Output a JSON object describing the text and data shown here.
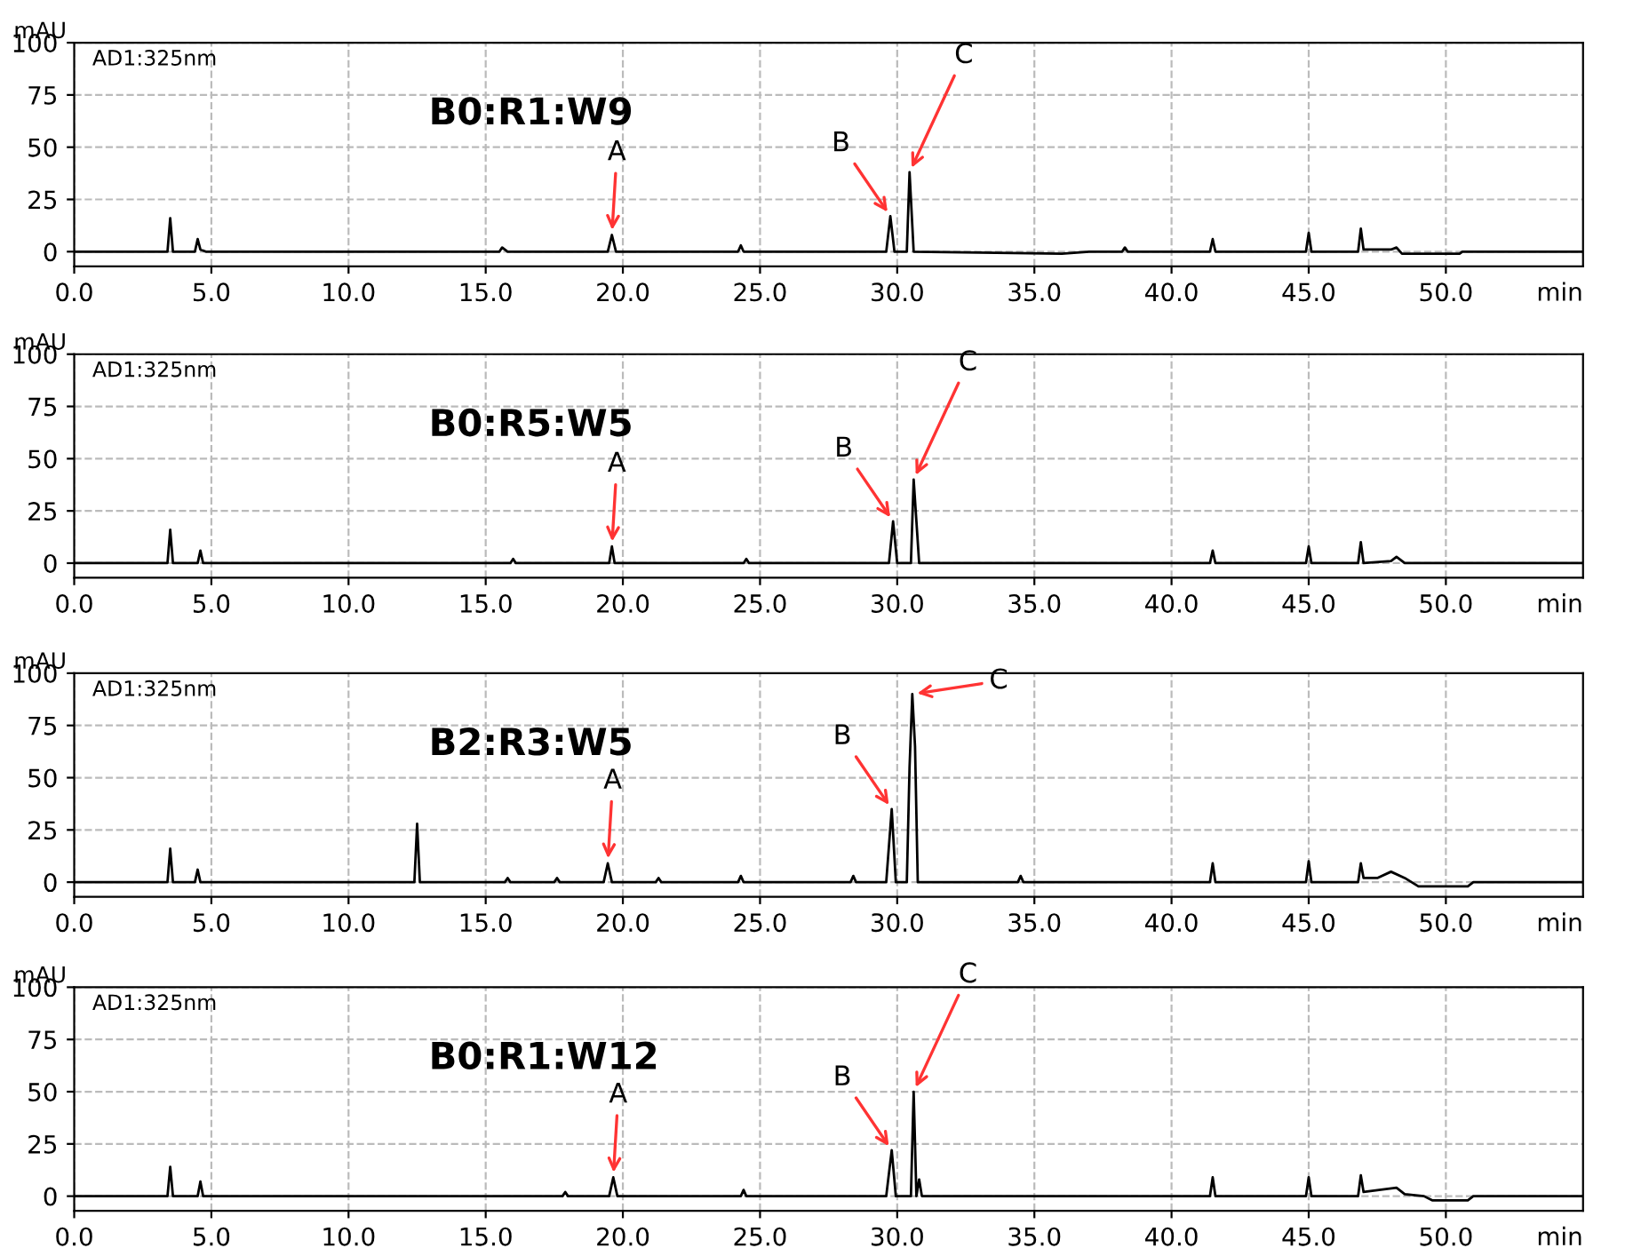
{
  "chart_data": [
    {
      "type": "line",
      "title": "B0:R1:W9",
      "ylabel": "mAU",
      "xlabel": "min",
      "annotations": [
        "AD1:325nm",
        {
          "text": "A",
          "x": 19.6,
          "y": 8
        },
        {
          "text": "B",
          "x": 29.75,
          "y": 17
        },
        {
          "text": "C",
          "x": 30.45,
          "y": 38
        }
      ],
      "series": [
        {
          "color": "#000000",
          "x": [
            0,
            3.4,
            3.5,
            3.6,
            4.4,
            4.5,
            4.6,
            4.8,
            15.5,
            15.6,
            15.8,
            19.45,
            19.6,
            19.75,
            24.2,
            24.3,
            24.4,
            29.6,
            29.75,
            29.9,
            30.35,
            30.45,
            30.6,
            36,
            37,
            38.2,
            38.3,
            38.4,
            41.4,
            41.5,
            41.6,
            44.9,
            45,
            45.1,
            46.8,
            46.9,
            47,
            48,
            48.2,
            48.4,
            50.5,
            50.6,
            55
          ],
          "values": [
            0,
            0,
            16,
            0,
            0,
            6,
            1,
            0,
            0,
            2,
            0,
            0,
            8,
            0,
            0,
            3,
            0,
            0,
            17,
            0,
            0,
            38,
            0,
            -1,
            0,
            0,
            2,
            0,
            0,
            6,
            0,
            0,
            9,
            0,
            0,
            11,
            1,
            1,
            2,
            -1,
            -1,
            0,
            0
          ]
        }
      ],
      "xlim": [
        0,
        55
      ],
      "xticks": [
        {
          "value": 0,
          "label": "0.0"
        },
        {
          "value": 5,
          "label": "5.0"
        },
        {
          "value": 10,
          "label": "10.0"
        },
        {
          "value": 15,
          "label": "15.0"
        },
        {
          "value": 20,
          "label": "20.0"
        },
        {
          "value": 25,
          "label": "25.0"
        },
        {
          "value": 30,
          "label": "30.0"
        },
        {
          "value": 35,
          "label": "35.0"
        },
        {
          "value": 40,
          "label": "40.0"
        },
        {
          "value": 45,
          "label": "45.0"
        },
        {
          "value": 50,
          "label": "50.0"
        }
      ],
      "ylim": [
        -7,
        100
      ],
      "yticks": [
        0,
        25,
        50,
        75,
        100
      ],
      "grid": true,
      "line_style": "solid",
      "marker": "none"
    },
    {
      "type": "line",
      "title": "B0:R5:W5",
      "ylabel": "mAU",
      "xlabel": "min",
      "annotations": [
        "AD1:325nm",
        {
          "text": "A",
          "x": 19.6,
          "y": 8
        },
        {
          "text": "B",
          "x": 29.85,
          "y": 20
        },
        {
          "text": "C",
          "x": 30.6,
          "y": 40
        }
      ],
      "series": [
        {
          "color": "#000000",
          "x": [
            0,
            3.4,
            3.5,
            3.6,
            4.5,
            4.6,
            4.7,
            15.9,
            16,
            16.1,
            19.5,
            19.6,
            19.7,
            24.4,
            24.5,
            24.6,
            29.7,
            29.85,
            30,
            30.5,
            30.6,
            30.7,
            30.8,
            41.4,
            41.5,
            41.6,
            44.9,
            45,
            45.1,
            46.8,
            46.9,
            47,
            48,
            48.2,
            48.5,
            55
          ],
          "values": [
            0,
            0,
            16,
            0,
            0,
            6,
            0,
            0,
            2,
            0,
            0,
            8,
            0,
            0,
            2,
            0,
            0,
            20,
            0,
            0,
            40,
            20,
            0,
            0,
            6,
            0,
            0,
            8,
            0,
            0,
            10,
            0,
            1,
            3,
            0,
            0
          ]
        }
      ],
      "xlim": [
        0,
        55
      ],
      "xticks": [
        {
          "value": 0,
          "label": "0.0"
        },
        {
          "value": 5,
          "label": "5.0"
        },
        {
          "value": 10,
          "label": "10.0"
        },
        {
          "value": 15,
          "label": "15.0"
        },
        {
          "value": 20,
          "label": "20.0"
        },
        {
          "value": 25,
          "label": "25.0"
        },
        {
          "value": 30,
          "label": "30.0"
        },
        {
          "value": 35,
          "label": "35.0"
        },
        {
          "value": 40,
          "label": "40.0"
        },
        {
          "value": 45,
          "label": "45.0"
        },
        {
          "value": 50,
          "label": "50.0"
        }
      ],
      "ylim": [
        -7,
        100
      ],
      "yticks": [
        0,
        25,
        50,
        75,
        100
      ],
      "grid": true,
      "line_style": "solid",
      "marker": "none"
    },
    {
      "type": "line",
      "title": "B2:R3:W5",
      "ylabel": "mAU",
      "xlabel": "min",
      "annotations": [
        "AD1:325nm",
        {
          "text": "A",
          "x": 19.45,
          "y": 9
        },
        {
          "text": "B",
          "x": 29.8,
          "y": 35
        },
        {
          "text": "C",
          "x": 30.55,
          "y": 90
        }
      ],
      "series": [
        {
          "color": "#000000",
          "x": [
            0,
            3.4,
            3.5,
            3.6,
            4.4,
            4.5,
            4.6,
            12.4,
            12.5,
            12.6,
            15.7,
            15.8,
            15.9,
            17.5,
            17.6,
            17.7,
            19.3,
            19.45,
            19.6,
            21.2,
            21.3,
            21.4,
            24.2,
            24.3,
            24.4,
            28.3,
            28.4,
            28.5,
            29.6,
            29.8,
            29.95,
            30.35,
            30.45,
            30.55,
            30.65,
            30.75,
            34.4,
            34.5,
            34.6,
            41.4,
            41.5,
            41.6,
            44.9,
            45,
            45.1,
            46.8,
            46.9,
            47,
            47.5,
            48,
            48.5,
            49,
            50.8,
            51,
            55
          ],
          "values": [
            0,
            0,
            16,
            0,
            0,
            6,
            0,
            0,
            28,
            0,
            0,
            2,
            0,
            0,
            2,
            0,
            0,
            9,
            0,
            0,
            2,
            0,
            0,
            3,
            0,
            0,
            3,
            0,
            0,
            35,
            0,
            0,
            55,
            90,
            65,
            0,
            0,
            3,
            0,
            0,
            9,
            0,
            0,
            10,
            0,
            0,
            9,
            2,
            2,
            5,
            2,
            -2,
            -2,
            0,
            0
          ]
        }
      ],
      "xlim": [
        0,
        55
      ],
      "xticks": [
        {
          "value": 0,
          "label": "0.0"
        },
        {
          "value": 5,
          "label": "5.0"
        },
        {
          "value": 10,
          "label": "10.0"
        },
        {
          "value": 15,
          "label": "15.0"
        },
        {
          "value": 20,
          "label": "20.0"
        },
        {
          "value": 25,
          "label": "25.0"
        },
        {
          "value": 30,
          "label": "30.0"
        },
        {
          "value": 35,
          "label": "35.0"
        },
        {
          "value": 40,
          "label": "40.0"
        },
        {
          "value": 45,
          "label": "45.0"
        },
        {
          "value": 50,
          "label": "50.0"
        }
      ],
      "ylim": [
        -7,
        100
      ],
      "yticks": [
        0,
        25,
        50,
        75,
        100
      ],
      "grid": true,
      "line_style": "solid",
      "marker": "none"
    },
    {
      "type": "line",
      "title": "B0:R1:W12",
      "ylabel": "mAU",
      "xlabel": "min",
      "annotations": [
        "AD1:325nm",
        {
          "text": "A",
          "x": 19.65,
          "y": 9
        },
        {
          "text": "B",
          "x": 29.8,
          "y": 22
        },
        {
          "text": "C",
          "x": 30.6,
          "y": 50
        }
      ],
      "series": [
        {
          "color": "#000000",
          "x": [
            0,
            3.4,
            3.5,
            3.6,
            4.5,
            4.6,
            4.7,
            17.8,
            17.9,
            18,
            19.5,
            19.65,
            19.8,
            24.3,
            24.4,
            24.5,
            29.6,
            29.8,
            29.95,
            30.5,
            30.6,
            30.7,
            30.8,
            30.9,
            41.4,
            41.5,
            41.6,
            44.9,
            45,
            45.1,
            46.8,
            46.9,
            47,
            48.2,
            48.5,
            49.2,
            49.5,
            50.8,
            51,
            55
          ],
          "values": [
            0,
            0,
            14,
            0,
            0,
            7,
            0,
            0,
            2,
            0,
            0,
            9,
            0,
            0,
            3,
            0,
            0,
            22,
            0,
            0,
            50,
            0,
            8,
            0,
            0,
            9,
            0,
            0,
            9,
            0,
            0,
            10,
            2,
            4,
            1,
            0,
            -2,
            -2,
            0,
            0
          ]
        }
      ],
      "xlim": [
        0,
        55
      ],
      "xticks": [
        {
          "value": 0,
          "label": "0.0"
        },
        {
          "value": 5,
          "label": "5.0"
        },
        {
          "value": 10,
          "label": "10.0"
        },
        {
          "value": 15,
          "label": "15.0"
        },
        {
          "value": 20,
          "label": "20.0"
        },
        {
          "value": 25,
          "label": "25.0"
        },
        {
          "value": 30,
          "label": "30.0"
        },
        {
          "value": 35,
          "label": "35.0"
        },
        {
          "value": 40,
          "label": "40.0"
        },
        {
          "value": 45,
          "label": "45.0"
        },
        {
          "value": 50,
          "label": "50.0"
        }
      ],
      "ylim": [
        -7,
        100
      ],
      "yticks": [
        0,
        25,
        50,
        75,
        100
      ],
      "grid": true,
      "line_style": "solid",
      "marker": "none"
    }
  ]
}
